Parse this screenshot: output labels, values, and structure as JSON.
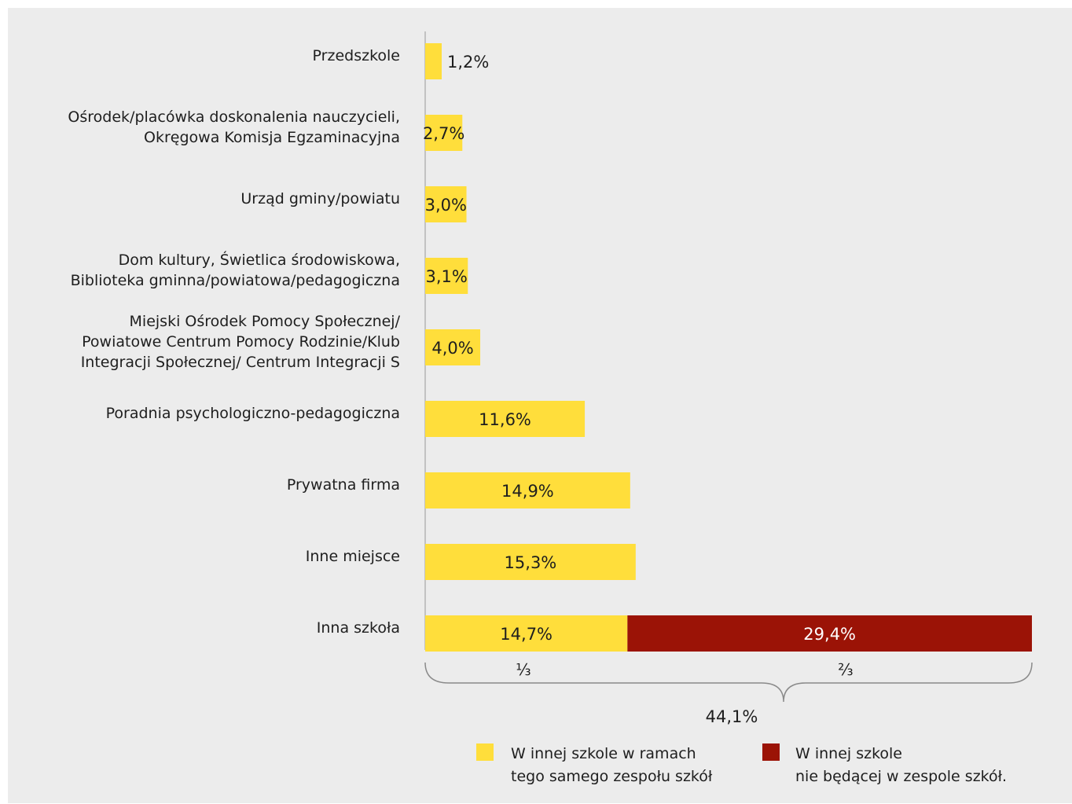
{
  "chart_data": {
    "type": "bar",
    "orientation": "horizontal",
    "stacked": true,
    "categories": [
      [
        "Przedszkole"
      ],
      [
        "Ośrodek/placówka doskonalenia nauczycieli,",
        "Okręgowa Komisja Egzaminacyjna"
      ],
      [
        "Urząd gminy/powiatu"
      ],
      [
        "Dom kultury, Świetlica środowiskowa,",
        "Biblioteka gminna/powiatowa/pedagogiczna"
      ],
      [
        "Miejski Ośrodek Pomocy Społecznej/",
        "Powiatowe Centrum Pomocy Rodzinie/Klub",
        "Integracji Społecznej/ Centrum Integracji S"
      ],
      [
        "Poradnia psychologiczno-pedagogiczna"
      ],
      [
        "Prywatna firma"
      ],
      [
        "Inne miejsce"
      ],
      [
        "Inna szkoła"
      ]
    ],
    "series": [
      {
        "name": "W innej szkole w ramach tego samego zespołu szkół",
        "color": "#FFDE3B",
        "values": [
          1.2,
          2.7,
          3.0,
          3.1,
          4.0,
          11.6,
          14.9,
          15.3,
          14.7
        ],
        "labels": [
          "1,2%",
          "2,7%",
          "3,0%",
          "3,1%",
          "4,0%",
          "11,6%",
          "14,9%",
          "15,3%",
          "14,7%"
        ]
      },
      {
        "name": "W innej szkole nie będącej w zespole szkół.",
        "color": "#9B1306",
        "values": [
          null,
          null,
          null,
          null,
          null,
          null,
          null,
          null,
          29.4
        ],
        "labels": [
          "",
          "",
          "",
          "",
          "",
          "",
          "",
          "",
          "29,4%"
        ]
      }
    ],
    "xlim": [
      0,
      44.1
    ],
    "annotations": {
      "fraction_left": "⅓",
      "fraction_right": "⅔",
      "total": "44,1%"
    },
    "legend": {
      "placement": "bottom",
      "items": [
        {
          "lines": [
            "W innej szkole w ramach",
            "tego samego zespołu szkół"
          ],
          "color": "#FFDE3B"
        },
        {
          "lines": [
            "W innej szkole",
            "nie będącej w zespole szkół."
          ],
          "color": "#9B1306"
        }
      ]
    },
    "colors": {
      "background": "#ECECEC",
      "axis": "#B4B4B4",
      "text": "#1E1E1E",
      "label_on_red": "#FFFFFF"
    }
  }
}
